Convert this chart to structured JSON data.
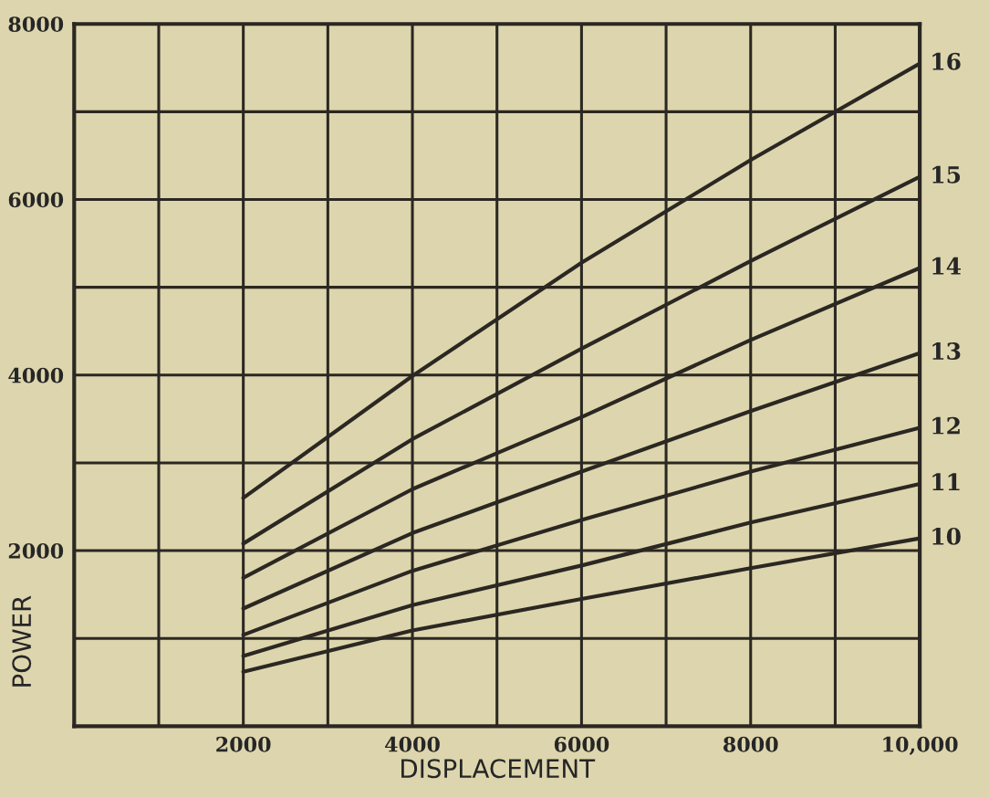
{
  "chart_data": {
    "type": "line",
    "xlabel": "DISPLACEMENT",
    "ylabel": "POWER",
    "x": [
      2000,
      4000,
      6000,
      8000,
      10000
    ],
    "series": [
      {
        "name": "10",
        "color": "#2b2722",
        "values": [
          620,
          1090,
          1450,
          1800,
          2140
        ]
      },
      {
        "name": "11",
        "color": "#2b2722",
        "values": [
          800,
          1380,
          1830,
          2320,
          2760
        ]
      },
      {
        "name": "12",
        "color": "#2b2722",
        "values": [
          1040,
          1770,
          2350,
          2900,
          3400
        ]
      },
      {
        "name": "13",
        "color": "#2b2722",
        "values": [
          1340,
          2200,
          2900,
          3590,
          4250
        ]
      },
      {
        "name": "14",
        "color": "#2b2722",
        "values": [
          1690,
          2700,
          3520,
          4400,
          5220
        ]
      },
      {
        "name": "15",
        "color": "#2b2722",
        "values": [
          2080,
          3270,
          4300,
          5300,
          6260
        ]
      },
      {
        "name": "16",
        "color": "#2b2722",
        "values": [
          2600,
          3990,
          5280,
          6450,
          7550
        ]
      }
    ],
    "xlim": [
      0,
      10000
    ],
    "ylim": [
      0,
      8000
    ],
    "xticks": [
      {
        "value": 1000,
        "label": null
      },
      2000,
      {
        "value": 3000,
        "label": null
      },
      4000,
      {
        "value": 5000,
        "label": null
      },
      6000,
      {
        "value": 7000,
        "label": null
      },
      8000,
      {
        "value": 9000,
        "label": null
      },
      {
        "value": 10000,
        "label": "10,000"
      }
    ],
    "yticks": [
      {
        "value": 1000,
        "label": null
      },
      2000,
      {
        "value": 3000,
        "label": null
      },
      4000,
      {
        "value": 5000,
        "label": null
      },
      6000,
      {
        "value": 7000,
        "label": null
      },
      8000
    ],
    "grid": true,
    "legend": false,
    "marker": "none",
    "line_style": "solid"
  }
}
